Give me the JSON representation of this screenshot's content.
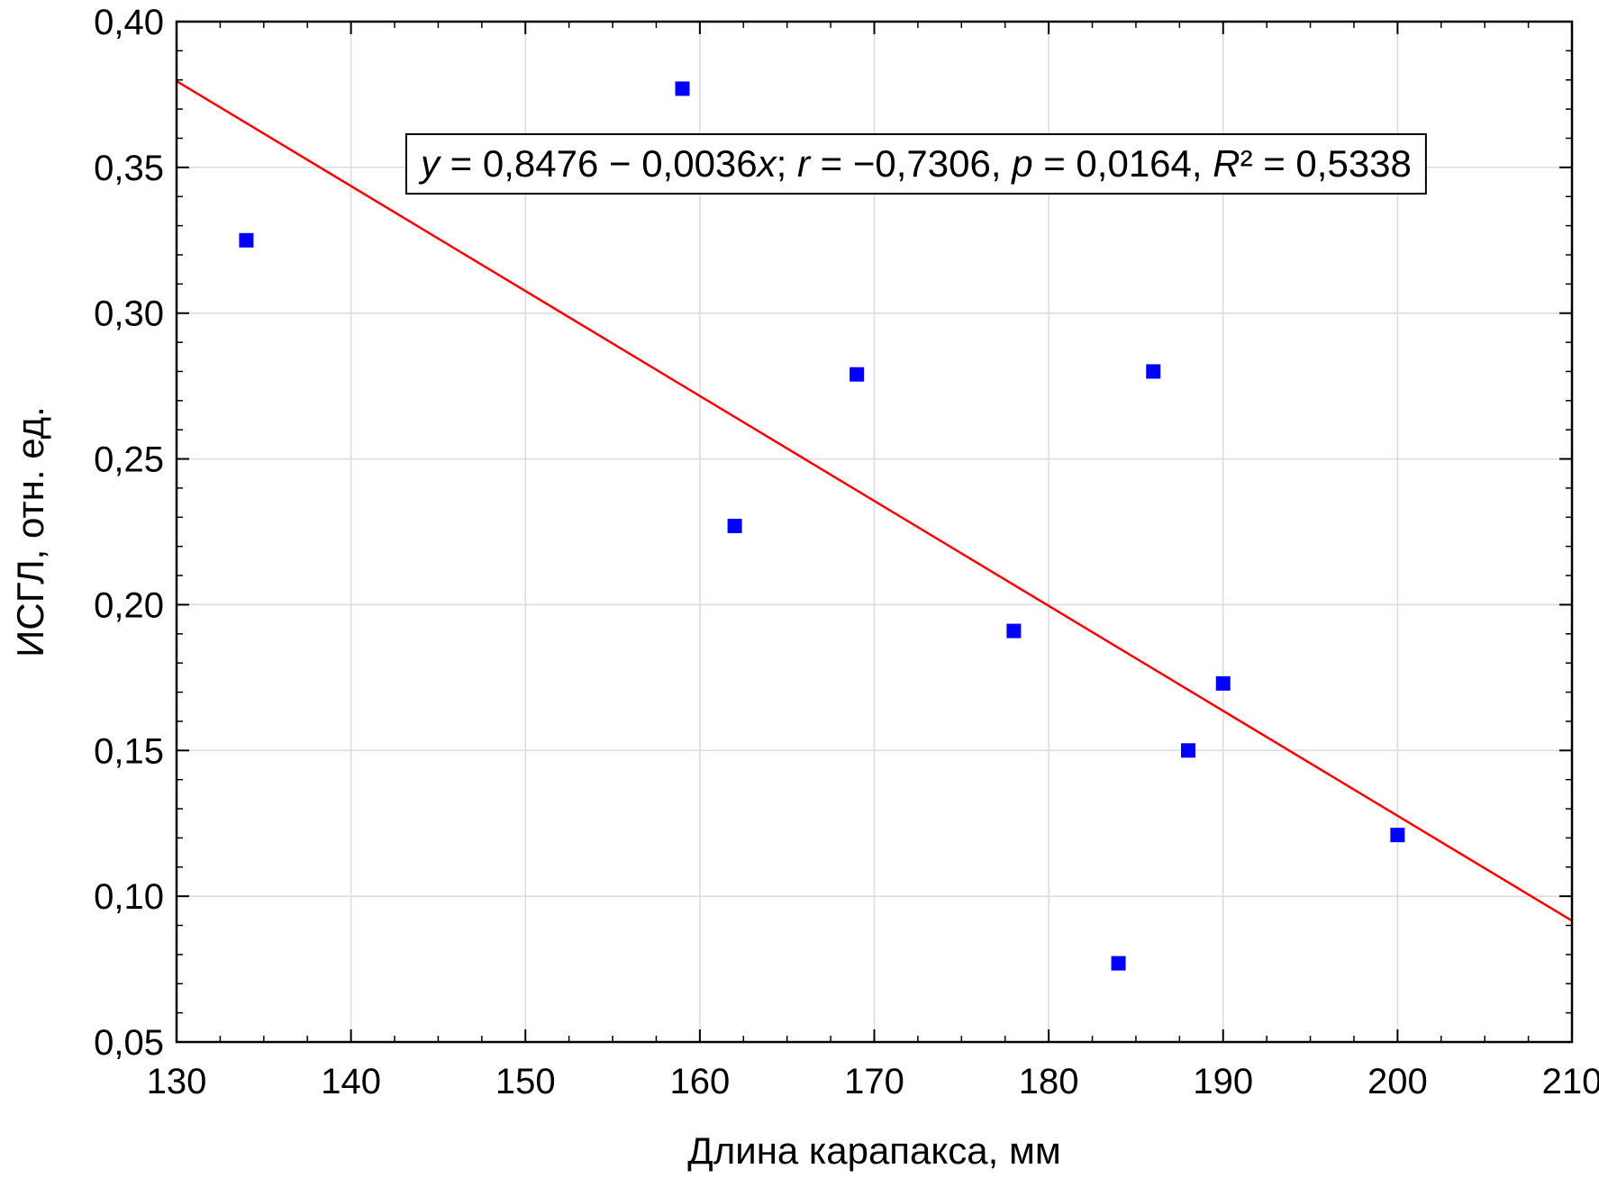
{
  "chart_data": {
    "type": "scatter",
    "title": "",
    "xlabel": "Длина карапакса, мм",
    "ylabel": "ИСГЛ, отн. ед.",
    "xlim": [
      130,
      210
    ],
    "ylim": [
      0.05,
      0.4
    ],
    "x_ticks": [
      130,
      140,
      150,
      160,
      170,
      180,
      190,
      200,
      210
    ],
    "x_tick_labels": [
      "130",
      "140",
      "150",
      "160",
      "170",
      "180",
      "190",
      "200",
      "210"
    ],
    "y_ticks": [
      0.05,
      0.1,
      0.15,
      0.2,
      0.25,
      0.3,
      0.35,
      0.4
    ],
    "y_tick_labels": [
      "0,05",
      "0,10",
      "0,15",
      "0,20",
      "0,25",
      "0,30",
      "0,35",
      "0,40"
    ],
    "grid": true,
    "series": [
      {
        "points": [
          {
            "x": 134,
            "y": 0.325
          },
          {
            "x": 159,
            "y": 0.377
          },
          {
            "x": 162,
            "y": 0.227
          },
          {
            "x": 169,
            "y": 0.279
          },
          {
            "x": 178,
            "y": 0.191
          },
          {
            "x": 184,
            "y": 0.077
          },
          {
            "x": 186,
            "y": 0.28
          },
          {
            "x": 188,
            "y": 0.15
          },
          {
            "x": 190,
            "y": 0.173
          },
          {
            "x": 200,
            "y": 0.121
          }
        ],
        "color": "#0000ff",
        "marker": "square"
      }
    ],
    "regression": {
      "intercept": 0.8476,
      "slope": -0.0036,
      "color": "#ff0000",
      "label_parts": [
        {
          "t": "y",
          "i": true
        },
        {
          "t": " = 0,8476 − 0,0036",
          "i": false
        },
        {
          "t": "x",
          "i": true
        },
        {
          "t": "; ",
          "i": false
        },
        {
          "t": "r",
          "i": true
        },
        {
          "t": " = −0,7306, ",
          "i": false
        },
        {
          "t": "p",
          "i": true
        },
        {
          "t": " = 0,0164, ",
          "i": false
        },
        {
          "t": "R",
          "i": true
        },
        {
          "t": "² = 0,5338",
          "i": false
        }
      ]
    }
  }
}
